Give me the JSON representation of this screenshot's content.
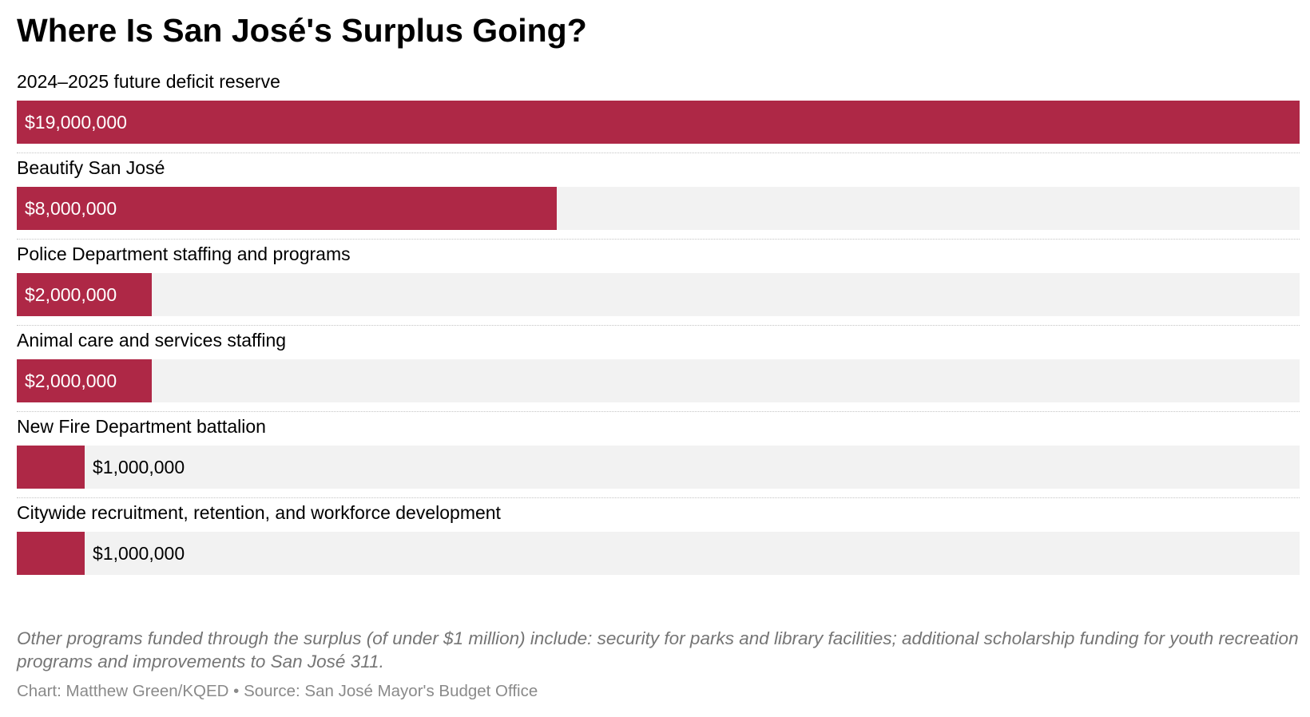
{
  "title": "Where Is San José's Surplus Going?",
  "chart_data": {
    "type": "bar",
    "orientation": "horizontal",
    "bar_color": "#ae2846",
    "track_color": "#f2f2f2",
    "xlim": [
      0,
      19000000
    ],
    "grid": false,
    "categories": [
      "2024–2025 future deficit reserve",
      "Beautify San José",
      "Police Department staffing and programs",
      "Animal care and services staffing",
      "New Fire Department battalion",
      "Citywide recruitment, retention, and workforce development"
    ],
    "values": [
      19000000,
      8000000,
      2000000,
      2000000,
      1000000,
      1000000
    ],
    "value_labels": [
      "$19,000,000",
      "$8,000,000",
      "$2,000,000",
      "$2,000,000",
      "$1,000,000",
      "$1,000,000"
    ]
  },
  "notes": "Other programs funded through the surplus (of under $1 million) include: security for parks and library facilities; additional scholarship funding for youth recreation programs and improvements to San José 311.",
  "footer": {
    "credit": "Chart: Matthew Green/KQED",
    "separator": "•",
    "source": "Source: San José Mayor's Budget Office"
  }
}
